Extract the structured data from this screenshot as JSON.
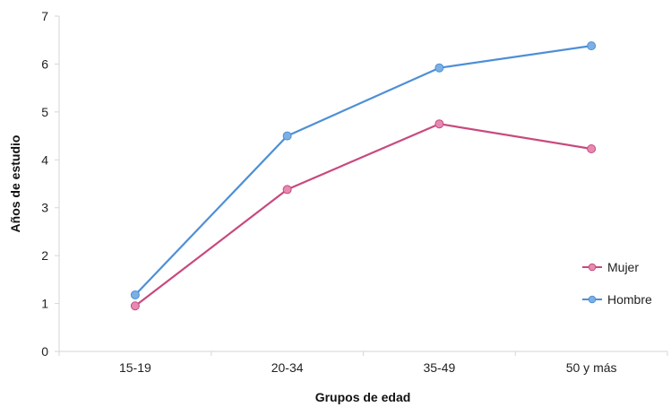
{
  "chart_data": {
    "type": "line",
    "title": "",
    "xlabel": "Grupos de edad",
    "ylabel": "Años de estudio",
    "categories": [
      "15-19",
      "20-34",
      "35-49",
      "50 y más"
    ],
    "ylim": [
      0,
      7
    ],
    "yticks": [
      0,
      1,
      2,
      3,
      4,
      5,
      6,
      7
    ],
    "grid": false,
    "legend": "right",
    "series": [
      {
        "name": "Mujer",
        "color": "#c8497e",
        "marker_color": "#e68ab2",
        "values": [
          0.95,
          3.38,
          4.75,
          4.23
        ]
      },
      {
        "name": "Hombre",
        "color": "#4d8fd6",
        "marker_color": "#7bb0e4",
        "values": [
          1.18,
          4.5,
          5.92,
          6.38
        ]
      }
    ]
  }
}
